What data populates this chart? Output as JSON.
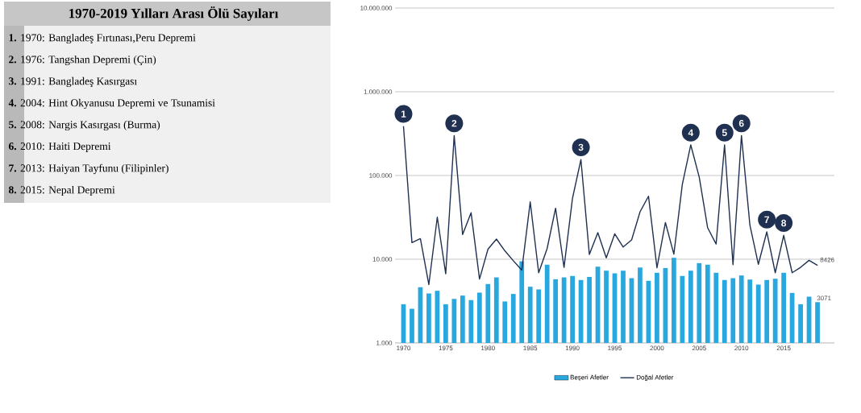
{
  "chart_data": {
    "type": "bar",
    "title": "1970-2019 Yılları Arası Ölü Sayıları",
    "x": [
      1970,
      1971,
      1972,
      1973,
      1974,
      1975,
      1976,
      1977,
      1978,
      1979,
      1980,
      1981,
      1982,
      1983,
      1984,
      1985,
      1986,
      1987,
      1988,
      1989,
      1990,
      1991,
      1992,
      1993,
      1994,
      1995,
      1996,
      1997,
      1998,
      1999,
      2000,
      2001,
      2002,
      2003,
      2004,
      2005,
      2006,
      2007,
      2008,
      2009,
      2010,
      2011,
      2012,
      2013,
      2014,
      2015,
      2016,
      2017,
      2018,
      2019
    ],
    "series": [
      {
        "name": "Beşeri Afetler",
        "color": "#29a8e0",
        "values": [
          2900,
          2560,
          4630,
          3900,
          4200,
          2900,
          3360,
          3680,
          3250,
          3990,
          5060,
          6070,
          3130,
          3850,
          9440,
          4690,
          4360,
          8600,
          5770,
          6070,
          6310,
          5650,
          6150,
          8150,
          7300,
          6780,
          7300,
          5940,
          7960,
          5520,
          6890,
          7850,
          10400,
          6310,
          7300,
          8980,
          8600,
          6890,
          5650,
          5940,
          6400,
          5720,
          4980,
          5650,
          5850,
          6890,
          3960,
          2900,
          3570,
          3071
        ],
        "value_labels": [
          null,
          null,
          null,
          null,
          null,
          null,
          null,
          null,
          null,
          null,
          null,
          null,
          null,
          null,
          null,
          null,
          null,
          null,
          null,
          null,
          null,
          null,
          null,
          null,
          null,
          null,
          null,
          null,
          null,
          null,
          null,
          null,
          null,
          null,
          null,
          null,
          null,
          null,
          null,
          null,
          null,
          null,
          null,
          null,
          null,
          null,
          null,
          null,
          null,
          "3071"
        ]
      },
      {
        "name": "Doğal Afetler",
        "type": "line",
        "color": "#1f3050",
        "values": [
          388000,
          15800,
          17600,
          4980,
          31800,
          6700,
          300000,
          19700,
          36000,
          5800,
          13200,
          17400,
          12600,
          9600,
          7400,
          48400,
          6900,
          13400,
          40600,
          8000,
          53200,
          155000,
          11400,
          20800,
          10400,
          20100,
          14000,
          17000,
          36900,
          56500,
          7900,
          27400,
          11500,
          78200,
          232000,
          96000,
          23700,
          15200,
          232000,
          8600,
          300000,
          25500,
          8700,
          21200,
          6900,
          19300,
          6900,
          8000,
          9700,
          8426
        ],
        "value_labels": [
          null,
          null,
          null,
          null,
          null,
          null,
          null,
          null,
          null,
          null,
          null,
          null,
          null,
          null,
          null,
          null,
          null,
          null,
          null,
          null,
          null,
          null,
          null,
          null,
          null,
          null,
          null,
          null,
          null,
          null,
          null,
          null,
          null,
          null,
          null,
          null,
          null,
          null,
          null,
          null,
          null,
          null,
          null,
          null,
          null,
          null,
          null,
          null,
          null,
          "8426"
        ]
      }
    ],
    "xlim": [
      1969,
      2021
    ],
    "xticks": [
      1970,
      1975,
      1980,
      1985,
      1990,
      1995,
      2000,
      2005,
      2010,
      2015
    ],
    "ylim": [
      1000,
      10000000
    ],
    "yticks": [
      {
        "value": 1000,
        "label": "1.000"
      },
      {
        "value": 10000,
        "label": "10.000"
      },
      {
        "value": 100000,
        "label": "100.000"
      },
      {
        "value": 1000000,
        "label": "1.000.000"
      },
      {
        "value": 10000000,
        "label": "10.000.000"
      }
    ],
    "log": "y",
    "grid": "y",
    "legend": "bottom",
    "marker": "none",
    "line_style": "solid",
    "annotations": [
      "**1.** 1970: Bangladeş Fırtınası,Peru Depremi",
      "**2.** 1976: Tangshan Depremi (Çin)",
      "**3.** 1991: Bangladeş Kasırgası",
      "**4.** 2004: Hint Okyanusu Depremi ve Tsunamisi",
      "**5.** 2008: Nargis Kasırgası (Burma)",
      "**6.** 2010: Haiti Depremi",
      "**7.** 2013: Haiyan Tayfunu (Filipinler)",
      "**8.** 2015: Nepal Depremi",
      {
        "text": "1",
        "x": 1970,
        "y": 388000
      },
      {
        "text": "2",
        "x": 1976,
        "y": 300000
      },
      {
        "text": "3",
        "x": 1991,
        "y": 155000
      },
      {
        "text": "4",
        "x": 2004,
        "y": 232000
      },
      {
        "text": "5",
        "x": 2008,
        "y": 232000
      },
      {
        "text": "6",
        "x": 2010,
        "y": 300000
      },
      {
        "text": "7",
        "x": 2013,
        "y": 21200
      },
      {
        "text": "8",
        "x": 2015,
        "y": 19300
      }
    ]
  }
}
